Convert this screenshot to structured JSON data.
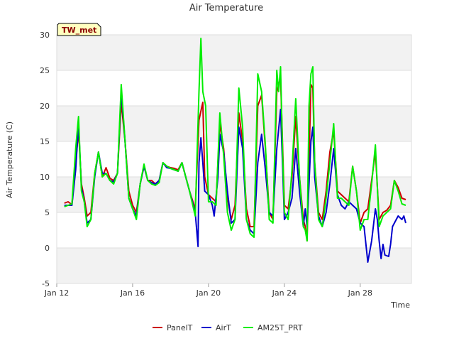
{
  "chart_data": {
    "type": "line",
    "title": "Air Temperature",
    "xlabel": "Time",
    "ylabel": "Air Temperature (C)",
    "badge": "TW_met",
    "xlim": [
      12.0,
      30.7
    ],
    "ylim": [
      -5,
      30
    ],
    "yticks": [
      -5,
      0,
      5,
      10,
      15,
      20,
      25,
      30
    ],
    "xticks": [
      {
        "value": 12,
        "label": "Jan 12"
      },
      {
        "value": 16,
        "label": "Jan 16"
      },
      {
        "value": 20,
        "label": "Jan 20"
      },
      {
        "value": 24,
        "label": "Jan 24"
      },
      {
        "value": 28,
        "label": "Jan 28"
      }
    ],
    "x_unit": "day of January",
    "series": [
      {
        "name": "PanelT",
        "color": "#cc0000",
        "points": [
          [
            12.4,
            6.3
          ],
          [
            12.6,
            6.5
          ],
          [
            12.8,
            6.1
          ],
          [
            13.0,
            12.0
          ],
          [
            13.15,
            16.5
          ],
          [
            13.3,
            9.0
          ],
          [
            13.45,
            7.0
          ],
          [
            13.6,
            4.5
          ],
          [
            13.8,
            5.0
          ],
          [
            14.0,
            10.5
          ],
          [
            14.2,
            13.5
          ],
          [
            14.4,
            10.0
          ],
          [
            14.6,
            11.3
          ],
          [
            14.8,
            9.8
          ],
          [
            15.0,
            9.5
          ],
          [
            15.2,
            10.5
          ],
          [
            15.4,
            20.5
          ],
          [
            15.6,
            15.0
          ],
          [
            15.8,
            8.0
          ],
          [
            16.0,
            6.0
          ],
          [
            16.2,
            5.0
          ],
          [
            16.4,
            9.0
          ],
          [
            16.6,
            11.5
          ],
          [
            16.8,
            9.5
          ],
          [
            17.0,
            9.5
          ],
          [
            17.2,
            9.0
          ],
          [
            17.4,
            9.5
          ],
          [
            17.6,
            12.0
          ],
          [
            17.8,
            11.5
          ],
          [
            18.0,
            11.3
          ],
          [
            18.2,
            11.2
          ],
          [
            18.4,
            11.0
          ],
          [
            18.6,
            12.0
          ],
          [
            18.8,
            10.0
          ],
          [
            19.0,
            8.0
          ],
          [
            19.3,
            5.5
          ],
          [
            19.5,
            18.0
          ],
          [
            19.7,
            20.5
          ],
          [
            19.8,
            10.0
          ],
          [
            20.0,
            7.5
          ],
          [
            20.2,
            7.0
          ],
          [
            20.4,
            6.5
          ],
          [
            20.6,
            17.5
          ],
          [
            20.8,
            14.0
          ],
          [
            21.0,
            7.0
          ],
          [
            21.2,
            4.0
          ],
          [
            21.4,
            6.0
          ],
          [
            21.6,
            19.0
          ],
          [
            21.8,
            15.0
          ],
          [
            22.0,
            5.5
          ],
          [
            22.2,
            3.0
          ],
          [
            22.4,
            3.0
          ],
          [
            22.6,
            20.0
          ],
          [
            22.8,
            21.5
          ],
          [
            23.0,
            14.0
          ],
          [
            23.2,
            5.0
          ],
          [
            23.4,
            4.0
          ],
          [
            23.6,
            22.0
          ],
          [
            23.8,
            24.0
          ],
          [
            23.9,
            15.0
          ],
          [
            24.0,
            6.0
          ],
          [
            24.2,
            5.5
          ],
          [
            24.4,
            10.0
          ],
          [
            24.6,
            18.5
          ],
          [
            24.8,
            10.0
          ],
          [
            25.0,
            4.0
          ],
          [
            25.1,
            3.0
          ],
          [
            25.2,
            1.0
          ],
          [
            25.4,
            23.0
          ],
          [
            25.5,
            22.5
          ],
          [
            25.6,
            12.0
          ],
          [
            25.8,
            5.0
          ],
          [
            26.0,
            4.0
          ],
          [
            26.2,
            8.0
          ],
          [
            26.4,
            13.5
          ],
          [
            26.6,
            16.5
          ],
          [
            26.8,
            8.0
          ],
          [
            27.0,
            7.5
          ],
          [
            27.2,
            7.0
          ],
          [
            27.4,
            6.5
          ],
          [
            27.6,
            11.5
          ],
          [
            27.8,
            8.0
          ],
          [
            28.0,
            3.5
          ],
          [
            28.2,
            5.0
          ],
          [
            28.4,
            5.5
          ],
          [
            28.6,
            9.5
          ],
          [
            28.8,
            13.5
          ],
          [
            29.0,
            4.0
          ],
          [
            29.2,
            5.0
          ],
          [
            29.4,
            5.3
          ],
          [
            29.6,
            6.0
          ],
          [
            29.8,
            9.5
          ],
          [
            30.0,
            8.5
          ],
          [
            30.2,
            7.0
          ],
          [
            30.4,
            6.8
          ]
        ]
      },
      {
        "name": "AirT",
        "color": "#0000cc",
        "points": [
          [
            12.4,
            6.0
          ],
          [
            12.6,
            6.0
          ],
          [
            12.8,
            6.0
          ],
          [
            13.0,
            11.0
          ],
          [
            13.15,
            17.5
          ],
          [
            13.3,
            8.5
          ],
          [
            13.45,
            6.5
          ],
          [
            13.6,
            3.5
          ],
          [
            13.8,
            4.0
          ],
          [
            14.0,
            10.0
          ],
          [
            14.2,
            13.5
          ],
          [
            14.4,
            10.5
          ],
          [
            14.6,
            10.5
          ],
          [
            14.8,
            9.5
          ],
          [
            15.0,
            9.3
          ],
          [
            15.2,
            10.5
          ],
          [
            15.4,
            22.0
          ],
          [
            15.6,
            15.0
          ],
          [
            15.8,
            7.0
          ],
          [
            16.0,
            5.5
          ],
          [
            16.2,
            4.5
          ],
          [
            16.4,
            9.0
          ],
          [
            16.6,
            11.5
          ],
          [
            16.8,
            9.5
          ],
          [
            17.0,
            9.2
          ],
          [
            17.2,
            9.0
          ],
          [
            17.4,
            9.5
          ],
          [
            17.6,
            12.0
          ],
          [
            17.8,
            11.3
          ],
          [
            18.0,
            11.2
          ],
          [
            18.2,
            11.0
          ],
          [
            18.4,
            10.8
          ],
          [
            18.6,
            12.0
          ],
          [
            18.8,
            10.0
          ],
          [
            19.0,
            8.0
          ],
          [
            19.3,
            5.0
          ],
          [
            19.45,
            0.2
          ],
          [
            19.5,
            12.0
          ],
          [
            19.6,
            15.5
          ],
          [
            19.7,
            12.0
          ],
          [
            19.8,
            8.0
          ],
          [
            20.0,
            7.5
          ],
          [
            20.2,
            6.0
          ],
          [
            20.3,
            4.5
          ],
          [
            20.5,
            10.0
          ],
          [
            20.6,
            16.0
          ],
          [
            20.8,
            13.5
          ],
          [
            21.0,
            8.0
          ],
          [
            21.2,
            3.5
          ],
          [
            21.4,
            4.0
          ],
          [
            21.6,
            17.0
          ],
          [
            21.8,
            14.0
          ],
          [
            22.0,
            4.0
          ],
          [
            22.2,
            2.5
          ],
          [
            22.4,
            2.0
          ],
          [
            22.6,
            12.0
          ],
          [
            22.8,
            16.0
          ],
          [
            23.0,
            11.0
          ],
          [
            23.2,
            5.0
          ],
          [
            23.4,
            4.5
          ],
          [
            23.6,
            14.0
          ],
          [
            23.8,
            19.5
          ],
          [
            23.9,
            12.0
          ],
          [
            24.0,
            4.0
          ],
          [
            24.2,
            5.0
          ],
          [
            24.4,
            7.0
          ],
          [
            24.6,
            14.0
          ],
          [
            24.8,
            8.0
          ],
          [
            25.0,
            3.0
          ],
          [
            25.1,
            5.5
          ],
          [
            25.2,
            3.0
          ],
          [
            25.4,
            15.0
          ],
          [
            25.5,
            17.0
          ],
          [
            25.6,
            10.0
          ],
          [
            25.8,
            4.5
          ],
          [
            26.0,
            3.0
          ],
          [
            26.2,
            5.0
          ],
          [
            26.4,
            9.0
          ],
          [
            26.6,
            14.0
          ],
          [
            26.8,
            7.5
          ],
          [
            27.0,
            6.0
          ],
          [
            27.2,
            5.5
          ],
          [
            27.4,
            6.5
          ],
          [
            27.6,
            6.0
          ],
          [
            27.8,
            5.5
          ],
          [
            28.0,
            3.5
          ],
          [
            28.2,
            3.0
          ],
          [
            28.4,
            -2.0
          ],
          [
            28.6,
            1.0
          ],
          [
            28.8,
            5.5
          ],
          [
            28.9,
            4.0
          ],
          [
            29.0,
            1.0
          ],
          [
            29.1,
            -1.5
          ],
          [
            29.2,
            0.5
          ],
          [
            29.3,
            -1.0
          ],
          [
            29.5,
            -1.2
          ],
          [
            29.6,
            0.5
          ],
          [
            29.7,
            3.0
          ],
          [
            29.9,
            4.0
          ],
          [
            30.0,
            4.5
          ],
          [
            30.2,
            4.0
          ],
          [
            30.3,
            4.5
          ],
          [
            30.4,
            3.5
          ]
        ]
      },
      {
        "name": "AM25T_PRT",
        "color": "#00ee00",
        "points": [
          [
            12.4,
            5.8
          ],
          [
            12.6,
            6.0
          ],
          [
            12.8,
            6.2
          ],
          [
            13.0,
            14.0
          ],
          [
            13.15,
            18.5
          ],
          [
            13.3,
            8.0
          ],
          [
            13.45,
            6.5
          ],
          [
            13.6,
            3.0
          ],
          [
            13.8,
            4.0
          ],
          [
            14.0,
            10.5
          ],
          [
            14.2,
            13.5
          ],
          [
            14.4,
            10.0
          ],
          [
            14.6,
            10.5
          ],
          [
            14.8,
            9.5
          ],
          [
            15.0,
            9.0
          ],
          [
            15.2,
            10.5
          ],
          [
            15.4,
            23.0
          ],
          [
            15.6,
            15.0
          ],
          [
            15.8,
            7.0
          ],
          [
            16.0,
            5.5
          ],
          [
            16.2,
            4.0
          ],
          [
            16.4,
            9.0
          ],
          [
            16.6,
            11.8
          ],
          [
            16.8,
            9.5
          ],
          [
            17.0,
            9.0
          ],
          [
            17.2,
            8.8
          ],
          [
            17.4,
            9.2
          ],
          [
            17.6,
            12.0
          ],
          [
            17.8,
            11.5
          ],
          [
            18.0,
            11.2
          ],
          [
            18.2,
            11.0
          ],
          [
            18.4,
            10.8
          ],
          [
            18.6,
            12.0
          ],
          [
            18.8,
            10.0
          ],
          [
            19.0,
            8.0
          ],
          [
            19.3,
            4.5
          ],
          [
            19.5,
            22.0
          ],
          [
            19.6,
            29.5
          ],
          [
            19.7,
            22.0
          ],
          [
            19.85,
            20.0
          ],
          [
            20.0,
            6.5
          ],
          [
            20.2,
            6.5
          ],
          [
            20.4,
            6.0
          ],
          [
            20.6,
            19.0
          ],
          [
            20.8,
            13.0
          ],
          [
            21.0,
            5.0
          ],
          [
            21.2,
            2.5
          ],
          [
            21.4,
            4.0
          ],
          [
            21.6,
            22.5
          ],
          [
            21.8,
            17.0
          ],
          [
            22.0,
            4.0
          ],
          [
            22.2,
            2.0
          ],
          [
            22.4,
            1.5
          ],
          [
            22.6,
            24.5
          ],
          [
            22.8,
            22.0
          ],
          [
            23.0,
            14.5
          ],
          [
            23.2,
            4.0
          ],
          [
            23.4,
            3.5
          ],
          [
            23.6,
            25.0
          ],
          [
            23.7,
            22.0
          ],
          [
            23.8,
            25.5
          ],
          [
            23.9,
            14.0
          ],
          [
            24.0,
            5.0
          ],
          [
            24.2,
            4.0
          ],
          [
            24.4,
            11.0
          ],
          [
            24.6,
            21.0
          ],
          [
            24.8,
            10.0
          ],
          [
            25.0,
            3.0
          ],
          [
            25.1,
            2.5
          ],
          [
            25.2,
            1.0
          ],
          [
            25.3,
            20.0
          ],
          [
            25.4,
            24.5
          ],
          [
            25.5,
            25.5
          ],
          [
            25.6,
            12.0
          ],
          [
            25.8,
            4.0
          ],
          [
            26.0,
            3.0
          ],
          [
            26.2,
            7.0
          ],
          [
            26.4,
            12.0
          ],
          [
            26.6,
            17.5
          ],
          [
            26.8,
            7.0
          ],
          [
            27.0,
            7.0
          ],
          [
            27.2,
            6.5
          ],
          [
            27.4,
            6.0
          ],
          [
            27.6,
            11.5
          ],
          [
            27.8,
            8.0
          ],
          [
            28.0,
            2.5
          ],
          [
            28.2,
            4.0
          ],
          [
            28.4,
            4.0
          ],
          [
            28.6,
            9.0
          ],
          [
            28.8,
            14.5
          ],
          [
            29.0,
            3.0
          ],
          [
            29.2,
            4.5
          ],
          [
            29.4,
            5.0
          ],
          [
            29.6,
            5.5
          ],
          [
            29.8,
            9.5
          ],
          [
            30.0,
            8.0
          ],
          [
            30.2,
            6.2
          ],
          [
            30.4,
            6.0
          ]
        ]
      }
    ]
  }
}
